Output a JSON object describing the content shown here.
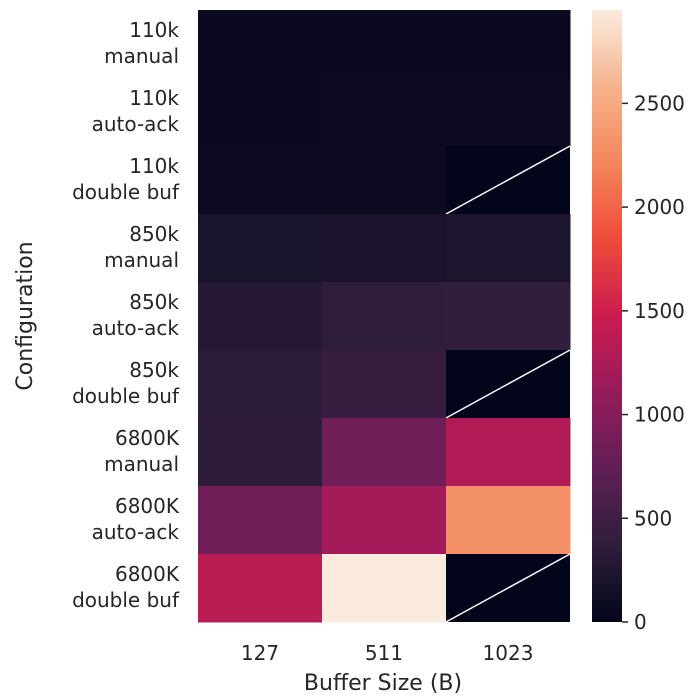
{
  "chart_data": {
    "type": "heatmap",
    "title": "",
    "xlabel": "Buffer Size (B)",
    "ylabel": "Configuration",
    "x_categories": [
      "127",
      "511",
      "1023"
    ],
    "y_categories": [
      [
        "110k",
        "manual"
      ],
      [
        "110k",
        "auto-ack"
      ],
      [
        "110k",
        "double buf"
      ],
      [
        "850k",
        "manual"
      ],
      [
        "850k",
        "auto-ack"
      ],
      [
        "850k",
        "double buf"
      ],
      [
        "6800K",
        "manual"
      ],
      [
        "6800K",
        "auto-ack"
      ],
      [
        "6800K",
        "double buf"
      ]
    ],
    "values": [
      [
        60,
        60,
        60
      ],
      [
        65,
        75,
        80
      ],
      [
        70,
        70,
        null
      ],
      [
        200,
        210,
        220
      ],
      [
        300,
        370,
        380
      ],
      [
        340,
        440,
        null
      ],
      [
        360,
        850,
        1300
      ],
      [
        850,
        1200,
        2300
      ],
      [
        1350,
        2950,
        null
      ]
    ],
    "missing_marker": "diagonal-line",
    "colormap": "rocket",
    "colorbar": {
      "min": 0,
      "max": 2950,
      "ticks": [
        0,
        500,
        1000,
        1500,
        2000,
        2500
      ],
      "stops": [
        "#03051a",
        "#2e1e3b",
        "#5f1f55",
        "#951b5c",
        "#cb1b4f",
        "#ef4b3a",
        "#f4855c",
        "#f6b38d",
        "#faebdd"
      ]
    }
  }
}
